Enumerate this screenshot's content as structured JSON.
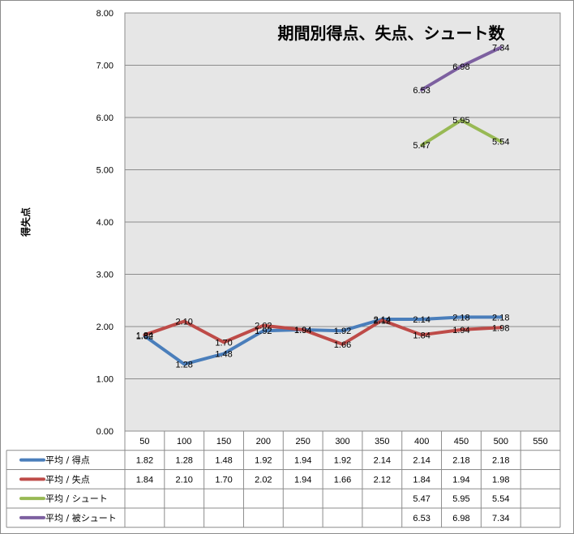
{
  "chart_data": {
    "type": "line",
    "title": "期間別得点、失点、シュート数",
    "ylabel": "得失点",
    "xlabel": "",
    "ylim": [
      0,
      8
    ],
    "yticks": [
      "0.00",
      "1.00",
      "2.00",
      "3.00",
      "4.00",
      "5.00",
      "6.00",
      "7.00",
      "8.00"
    ],
    "categories": [
      "50",
      "100",
      "150",
      "200",
      "250",
      "300",
      "350",
      "400",
      "450",
      "500",
      "550"
    ],
    "grid": true,
    "legend": "data-table",
    "series": [
      {
        "name": "平均 / 得点",
        "color": "#4a7ebb",
        "values": [
          1.82,
          1.28,
          1.48,
          1.92,
          1.94,
          1.92,
          2.14,
          2.14,
          2.18,
          2.18,
          null
        ],
        "labels": [
          "1.82",
          "1.28",
          "1.48",
          "1.92",
          "1.94",
          "1.92",
          "2.14",
          "2.14",
          "2.18",
          "2.18",
          ""
        ]
      },
      {
        "name": "平均 / 失点",
        "color": "#be4b48",
        "values": [
          1.84,
          2.1,
          1.7,
          2.02,
          1.94,
          1.66,
          2.12,
          1.84,
          1.94,
          1.98,
          null
        ],
        "labels": [
          "1.84",
          "2.10",
          "1.70",
          "2.02",
          "1.94",
          "1.66",
          "2.12",
          "1.84",
          "1.94",
          "1.98",
          ""
        ]
      },
      {
        "name": "平均 / シュート",
        "color": "#98b954",
        "values": [
          null,
          null,
          null,
          null,
          null,
          null,
          null,
          5.47,
          5.95,
          5.54,
          null
        ],
        "labels": [
          "",
          "",
          "",
          "",
          "",
          "",
          "",
          "5.47",
          "5.95",
          "5.54",
          ""
        ]
      },
      {
        "name": "平均 / 被シュート",
        "color": "#7d60a0",
        "values": [
          null,
          null,
          null,
          null,
          null,
          null,
          null,
          6.53,
          6.98,
          7.34,
          null
        ],
        "labels": [
          "",
          "",
          "",
          "",
          "",
          "",
          "",
          "6.53",
          "6.98",
          "7.34",
          ""
        ]
      }
    ]
  }
}
